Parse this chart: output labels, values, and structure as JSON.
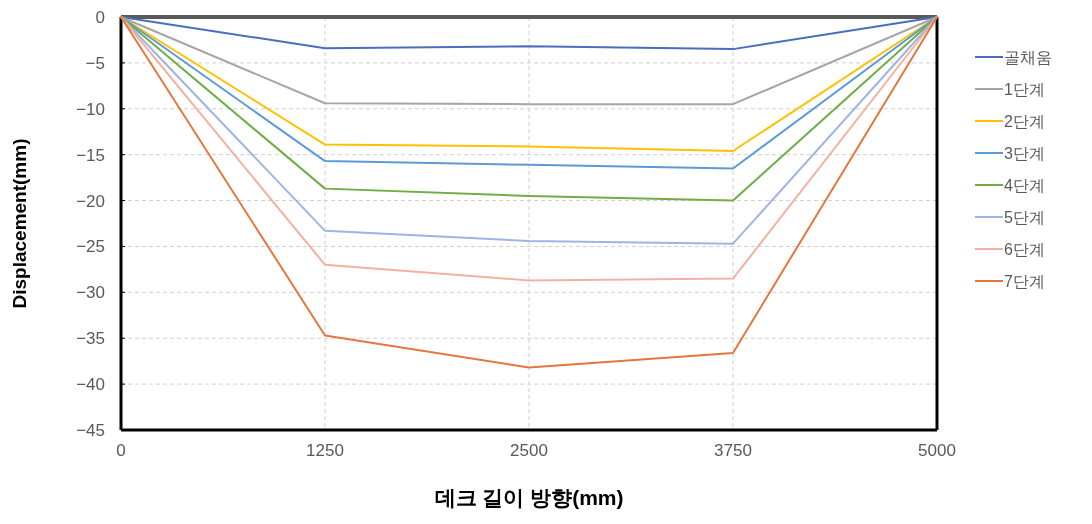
{
  "chart_data": {
    "type": "line",
    "xlabel": "데크 길이 방향(mm)",
    "ylabel": "Displacement(mm)",
    "x": [
      0,
      1250,
      2500,
      3750,
      5000
    ],
    "xlim": [
      0,
      5000
    ],
    "xticks": [
      0,
      1250,
      2500,
      3750,
      5000
    ],
    "ylim": [
      -45,
      0
    ],
    "yticks": [
      -45,
      -40,
      -35,
      -30,
      -25,
      -20,
      -15,
      -10,
      -5,
      0
    ],
    "grid": true,
    "legend": "right",
    "line_style": "solid",
    "marker": "none",
    "series": [
      {
        "name": "골채움",
        "color": "#4a6ebd",
        "values": [
          0,
          -3.4,
          -3.2,
          -3.5,
          0
        ]
      },
      {
        "name": "1단계",
        "color": "#a5a5a5",
        "values": [
          0,
          -9.4,
          -9.5,
          -9.5,
          0
        ]
      },
      {
        "name": "2단계",
        "color": "#ffc000",
        "values": [
          0,
          -13.9,
          -14.1,
          -14.6,
          0
        ]
      },
      {
        "name": "3단계",
        "color": "#5b9bd5",
        "values": [
          0,
          -15.7,
          -16.1,
          -16.5,
          0
        ]
      },
      {
        "name": "4단계",
        "color": "#70ad47",
        "values": [
          0,
          -18.7,
          -19.5,
          -20.0,
          0
        ]
      },
      {
        "name": "5단계",
        "color": "#9fb4e3",
        "values": [
          0,
          -23.3,
          -24.4,
          -24.7,
          0
        ]
      },
      {
        "name": "6단계",
        "color": "#f4b1a0",
        "values": [
          0,
          -27.0,
          -28.7,
          -28.5,
          0
        ]
      },
      {
        "name": "7단계",
        "color": "#e4773d",
        "values": [
          0,
          -34.7,
          -38.2,
          -36.6,
          0
        ]
      }
    ]
  }
}
